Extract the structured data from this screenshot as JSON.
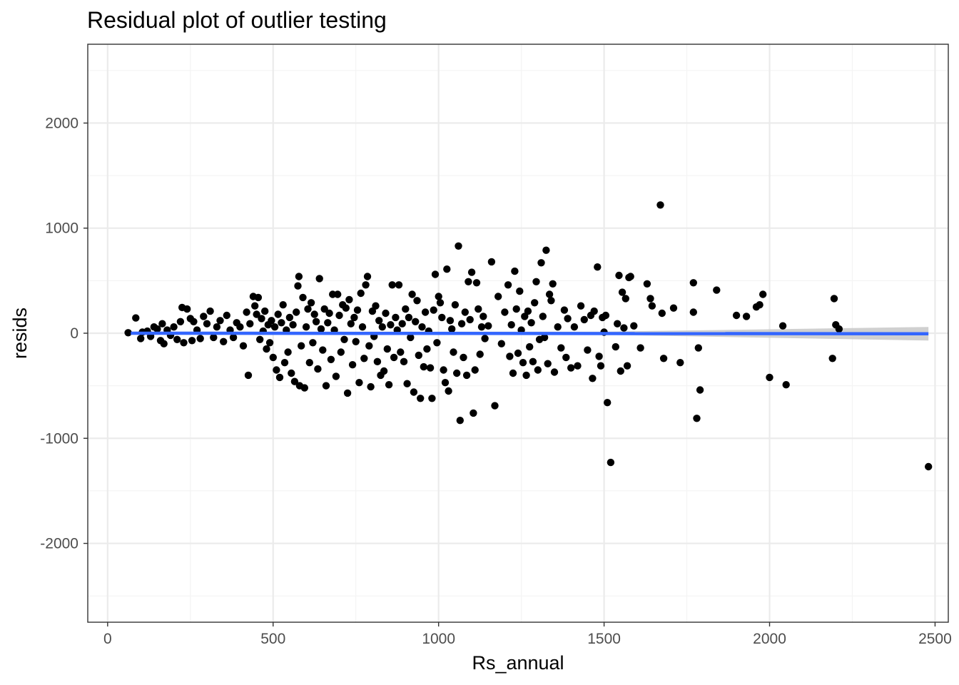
{
  "chart_data": {
    "type": "scatter",
    "title": "Residual plot of outlier testing",
    "xlabel": "Rs_annual",
    "ylabel": "resids",
    "xlim": [
      -60,
      2540
    ],
    "ylim": [
      -2750,
      2750
    ],
    "x_ticks": [
      0,
      500,
      1000,
      1500,
      2000,
      2500
    ],
    "x_tick_labels": [
      "0",
      "500",
      "1000",
      "1500",
      "2000",
      "2500"
    ],
    "y_ticks": [
      -2000,
      -1000,
      0,
      1000,
      2000
    ],
    "y_tick_labels": [
      "-2000",
      "-1000",
      "0",
      "1000",
      "2000"
    ],
    "grid": true,
    "legend": "none",
    "colors": {
      "points": "#000000",
      "fit_line": "#3366ff",
      "confidence_band": "#c8c8c8",
      "grid_major": "#ebebeb",
      "grid_minor": "#f4f4f4",
      "panel_border": "#333333",
      "tick_label": "#4d4d4d"
    },
    "fit_line": {
      "x": [
        70,
        2480
      ],
      "y": [
        0,
        -5
      ]
    },
    "confidence_band": {
      "x": [
        70,
        1500,
        2480
      ],
      "upper": [
        15,
        15,
        60
      ],
      "lower": [
        -15,
        -15,
        -70
      ]
    },
    "points": [
      [
        62,
        5
      ],
      [
        85,
        145
      ],
      [
        100,
        -50
      ],
      [
        105,
        10
      ],
      [
        120,
        20
      ],
      [
        130,
        -30
      ],
      [
        140,
        60
      ],
      [
        150,
        40
      ],
      [
        160,
        -70
      ],
      [
        165,
        90
      ],
      [
        170,
        -100
      ],
      [
        180,
        30
      ],
      [
        190,
        -20
      ],
      [
        200,
        60
      ],
      [
        210,
        -60
      ],
      [
        220,
        110
      ],
      [
        225,
        245
      ],
      [
        230,
        -90
      ],
      [
        240,
        230
      ],
      [
        250,
        140
      ],
      [
        255,
        -70
      ],
      [
        260,
        110
      ],
      [
        270,
        30
      ],
      [
        280,
        -50
      ],
      [
        290,
        160
      ],
      [
        300,
        90
      ],
      [
        310,
        210
      ],
      [
        320,
        -40
      ],
      [
        330,
        60
      ],
      [
        340,
        120
      ],
      [
        350,
        -80
      ],
      [
        360,
        170
      ],
      [
        370,
        30
      ],
      [
        380,
        -40
      ],
      [
        390,
        100
      ],
      [
        400,
        60
      ],
      [
        410,
        -120
      ],
      [
        420,
        200
      ],
      [
        425,
        -400
      ],
      [
        430,
        90
      ],
      [
        440,
        350
      ],
      [
        445,
        260
      ],
      [
        450,
        180
      ],
      [
        455,
        340
      ],
      [
        460,
        -60
      ],
      [
        465,
        140
      ],
      [
        470,
        20
      ],
      [
        475,
        210
      ],
      [
        480,
        -150
      ],
      [
        485,
        80
      ],
      [
        490,
        -90
      ],
      [
        495,
        120
      ],
      [
        500,
        -230
      ],
      [
        505,
        60
      ],
      [
        510,
        -350
      ],
      [
        515,
        180
      ],
      [
        520,
        -420
      ],
      [
        525,
        100
      ],
      [
        530,
        270
      ],
      [
        535,
        -280
      ],
      [
        540,
        30
      ],
      [
        545,
        -180
      ],
      [
        550,
        150
      ],
      [
        555,
        -380
      ],
      [
        560,
        80
      ],
      [
        565,
        -460
      ],
      [
        570,
        200
      ],
      [
        575,
        450
      ],
      [
        578,
        540
      ],
      [
        580,
        -500
      ],
      [
        585,
        -120
      ],
      [
        590,
        340
      ],
      [
        595,
        -520
      ],
      [
        600,
        60
      ],
      [
        605,
        230
      ],
      [
        610,
        -280
      ],
      [
        615,
        290
      ],
      [
        620,
        -90
      ],
      [
        625,
        180
      ],
      [
        630,
        110
      ],
      [
        635,
        -340
      ],
      [
        640,
        520
      ],
      [
        645,
        40
      ],
      [
        650,
        -160
      ],
      [
        655,
        230
      ],
      [
        660,
        -500
      ],
      [
        665,
        100
      ],
      [
        670,
        190
      ],
      [
        675,
        -250
      ],
      [
        680,
        370
      ],
      [
        685,
        30
      ],
      [
        690,
        -410
      ],
      [
        695,
        370
      ],
      [
        700,
        170
      ],
      [
        705,
        -180
      ],
      [
        710,
        270
      ],
      [
        715,
        -60
      ],
      [
        720,
        240
      ],
      [
        725,
        -570
      ],
      [
        730,
        320
      ],
      [
        735,
        90
      ],
      [
        740,
        -300
      ],
      [
        745,
        150
      ],
      [
        750,
        -80
      ],
      [
        755,
        220
      ],
      [
        760,
        -470
      ],
      [
        765,
        380
      ],
      [
        770,
        60
      ],
      [
        775,
        -240
      ],
      [
        780,
        460
      ],
      [
        785,
        540
      ],
      [
        790,
        -120
      ],
      [
        795,
        -510
      ],
      [
        800,
        210
      ],
      [
        805,
        -30
      ],
      [
        810,
        260
      ],
      [
        815,
        -270
      ],
      [
        820,
        120
      ],
      [
        825,
        -400
      ],
      [
        830,
        60
      ],
      [
        835,
        -360
      ],
      [
        840,
        190
      ],
      [
        845,
        -150
      ],
      [
        850,
        -490
      ],
      [
        855,
        80
      ],
      [
        860,
        460
      ],
      [
        865,
        -230
      ],
      [
        870,
        150
      ],
      [
        875,
        30
      ],
      [
        880,
        460
      ],
      [
        885,
        -180
      ],
      [
        890,
        90
      ],
      [
        895,
        -270
      ],
      [
        900,
        230
      ],
      [
        905,
        -480
      ],
      [
        910,
        150
      ],
      [
        915,
        -40
      ],
      [
        920,
        370
      ],
      [
        925,
        -560
      ],
      [
        930,
        110
      ],
      [
        935,
        310
      ],
      [
        940,
        -210
      ],
      [
        945,
        -620
      ],
      [
        950,
        60
      ],
      [
        955,
        -320
      ],
      [
        960,
        200
      ],
      [
        965,
        -150
      ],
      [
        970,
        20
      ],
      [
        975,
        -330
      ],
      [
        980,
        -620
      ],
      [
        985,
        220
      ],
      [
        990,
        560
      ],
      [
        995,
        -90
      ],
      [
        1000,
        350
      ],
      [
        1005,
        290
      ],
      [
        1010,
        150
      ],
      [
        1015,
        -350
      ],
      [
        1020,
        -470
      ],
      [
        1025,
        610
      ],
      [
        1030,
        -550
      ],
      [
        1035,
        120
      ],
      [
        1040,
        40
      ],
      [
        1045,
        -180
      ],
      [
        1050,
        270
      ],
      [
        1055,
        -380
      ],
      [
        1060,
        830
      ],
      [
        1065,
        -830
      ],
      [
        1070,
        90
      ],
      [
        1075,
        -230
      ],
      [
        1080,
        200
      ],
      [
        1085,
        -400
      ],
      [
        1090,
        490
      ],
      [
        1095,
        130
      ],
      [
        1100,
        580
      ],
      [
        1105,
        -760
      ],
      [
        1110,
        -350
      ],
      [
        1115,
        480
      ],
      [
        1120,
        230
      ],
      [
        1125,
        -200
      ],
      [
        1130,
        60
      ],
      [
        1135,
        160
      ],
      [
        1140,
        -50
      ],
      [
        1150,
        70
      ],
      [
        1160,
        680
      ],
      [
        1170,
        -690
      ],
      [
        1180,
        350
      ],
      [
        1190,
        -100
      ],
      [
        1200,
        200
      ],
      [
        1210,
        460
      ],
      [
        1215,
        -220
      ],
      [
        1220,
        80
      ],
      [
        1225,
        -380
      ],
      [
        1230,
        590
      ],
      [
        1235,
        230
      ],
      [
        1240,
        -190
      ],
      [
        1245,
        400
      ],
      [
        1250,
        30
      ],
      [
        1255,
        -280
      ],
      [
        1260,
        160
      ],
      [
        1265,
        -400
      ],
      [
        1270,
        210
      ],
      [
        1275,
        -130
      ],
      [
        1280,
        100
      ],
      [
        1285,
        -270
      ],
      [
        1290,
        290
      ],
      [
        1295,
        490
      ],
      [
        1300,
        -350
      ],
      [
        1305,
        -60
      ],
      [
        1310,
        670
      ],
      [
        1315,
        160
      ],
      [
        1320,
        -40
      ],
      [
        1325,
        790
      ],
      [
        1330,
        -290
      ],
      [
        1335,
        370
      ],
      [
        1340,
        310
      ],
      [
        1345,
        470
      ],
      [
        1350,
        -370
      ],
      [
        1360,
        60
      ],
      [
        1370,
        -140
      ],
      [
        1380,
        220
      ],
      [
        1385,
        -230
      ],
      [
        1390,
        140
      ],
      [
        1400,
        -330
      ],
      [
        1410,
        60
      ],
      [
        1420,
        -310
      ],
      [
        1430,
        260
      ],
      [
        1440,
        130
      ],
      [
        1450,
        -160
      ],
      [
        1460,
        170
      ],
      [
        1465,
        -430
      ],
      [
        1470,
        210
      ],
      [
        1480,
        630
      ],
      [
        1485,
        -220
      ],
      [
        1490,
        -310
      ],
      [
        1495,
        150
      ],
      [
        1500,
        10
      ],
      [
        1505,
        170
      ],
      [
        1510,
        -660
      ],
      [
        1520,
        -1230
      ],
      [
        1535,
        -130
      ],
      [
        1540,
        90
      ],
      [
        1545,
        550
      ],
      [
        1550,
        -360
      ],
      [
        1555,
        390
      ],
      [
        1560,
        50
      ],
      [
        1565,
        330
      ],
      [
        1570,
        -310
      ],
      [
        1575,
        530
      ],
      [
        1580,
        540
      ],
      [
        1590,
        70
      ],
      [
        1610,
        -140
      ],
      [
        1630,
        470
      ],
      [
        1640,
        330
      ],
      [
        1645,
        260
      ],
      [
        1670,
        1220
      ],
      [
        1675,
        190
      ],
      [
        1680,
        -240
      ],
      [
        1710,
        240
      ],
      [
        1730,
        -280
      ],
      [
        1770,
        480
      ],
      [
        1770,
        200
      ],
      [
        1780,
        -810
      ],
      [
        1785,
        -140
      ],
      [
        1790,
        -540
      ],
      [
        1840,
        410
      ],
      [
        1900,
        170
      ],
      [
        1930,
        160
      ],
      [
        1960,
        250
      ],
      [
        1970,
        270
      ],
      [
        1980,
        370
      ],
      [
        2000,
        -420
      ],
      [
        2040,
        70
      ],
      [
        2050,
        -490
      ],
      [
        2190,
        -240
      ],
      [
        2195,
        330
      ],
      [
        2200,
        80
      ],
      [
        2210,
        40
      ],
      [
        2480,
        -1270
      ]
    ]
  }
}
